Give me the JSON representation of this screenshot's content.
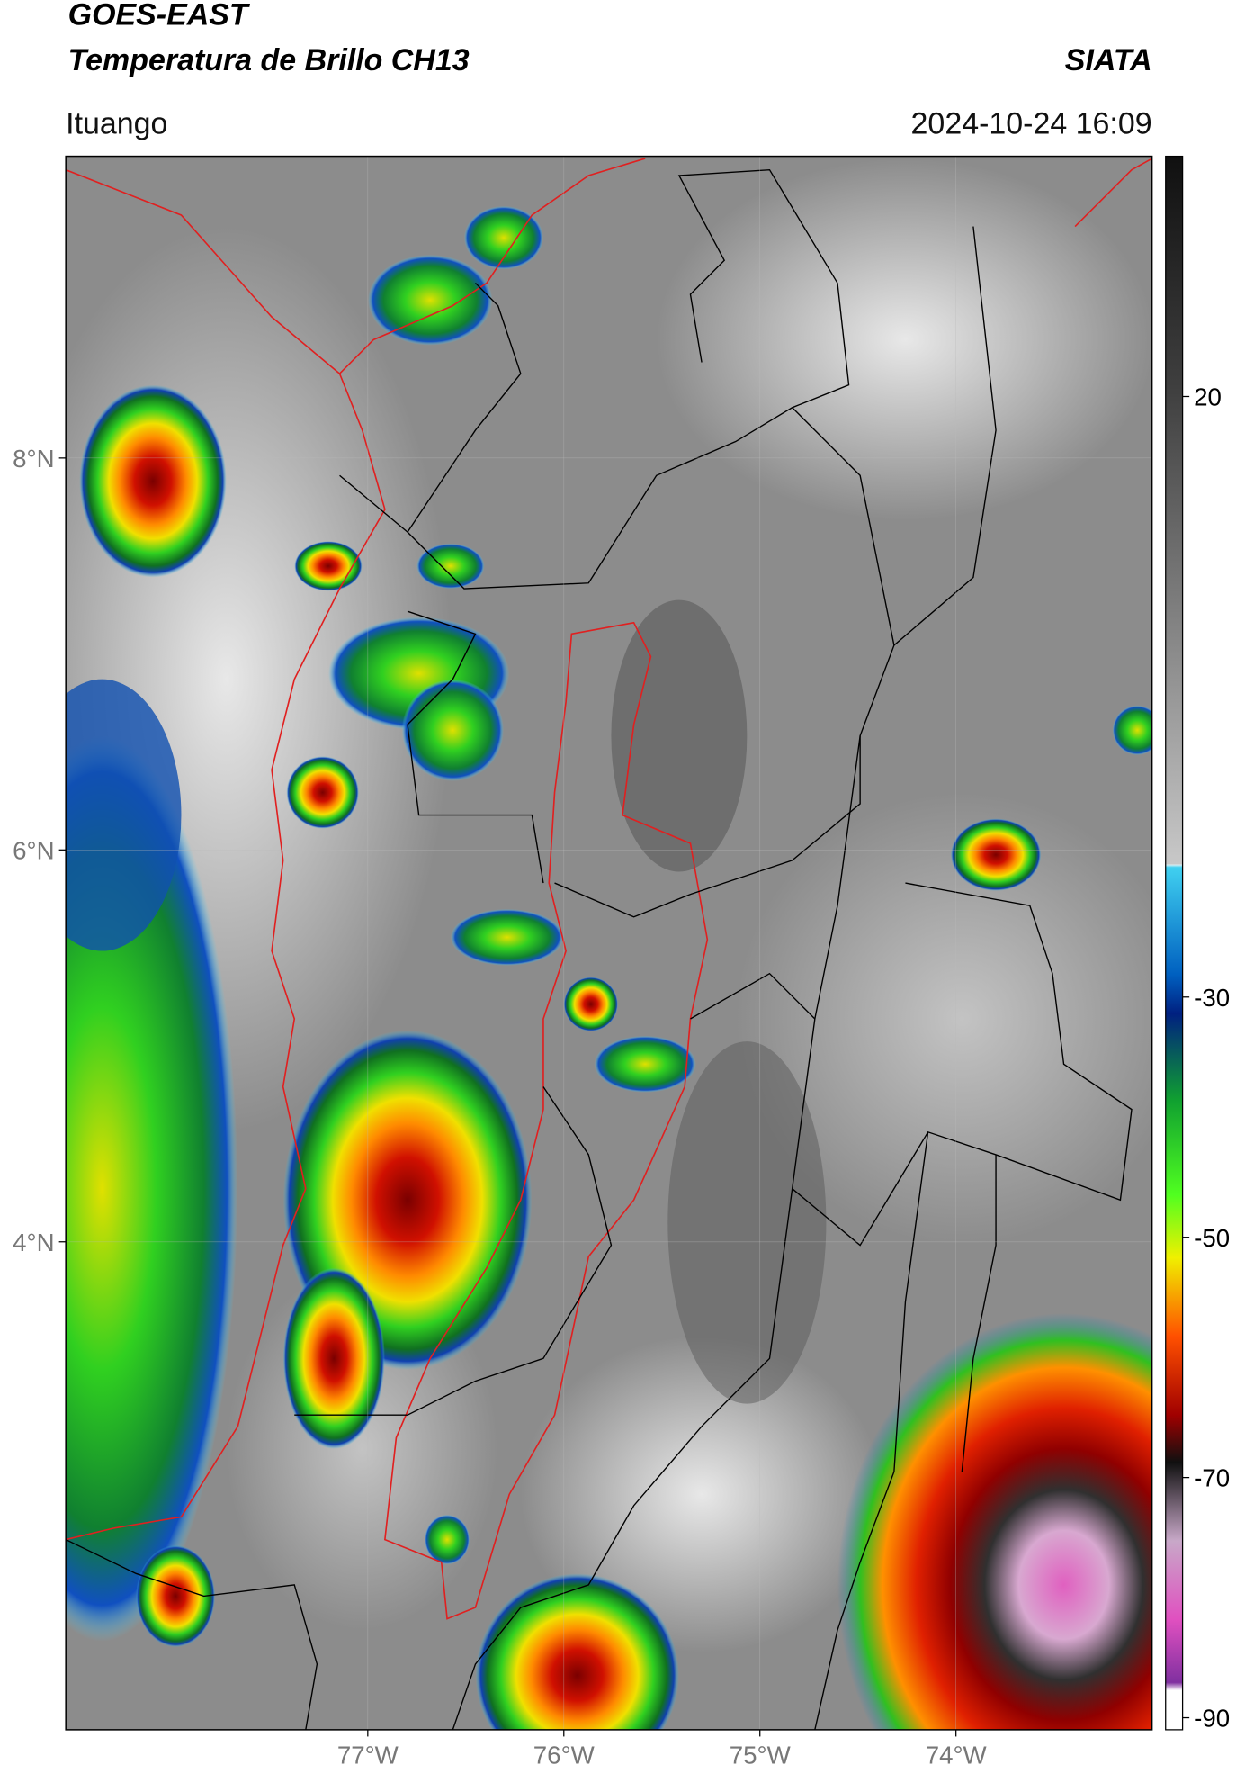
{
  "chart_data": {
    "type": "map",
    "title": "GOES-EAST",
    "subtitle": "Temperatura de Brillo CH13",
    "source": "SIATA",
    "location": "Ituango",
    "datetime": "2024-10-24 16:09",
    "xlim": [
      -78.54,
      -73.0
    ],
    "ylim": [
      1.51,
      9.54
    ],
    "xticks": [
      {
        "value": -77,
        "label": "77°W"
      },
      {
        "value": -76,
        "label": "76°W"
      },
      {
        "value": -75,
        "label": "75°W"
      },
      {
        "value": -74,
        "label": "74°W"
      }
    ],
    "yticks": [
      {
        "value": 8,
        "label": "8°N"
      },
      {
        "value": 6,
        "label": "6°N"
      },
      {
        "value": 4,
        "label": "4°N"
      }
    ],
    "clim": [
      -91,
      40
    ],
    "cticks": [
      20,
      -30,
      -50,
      -70,
      -90
    ],
    "grid": true
  }
}
